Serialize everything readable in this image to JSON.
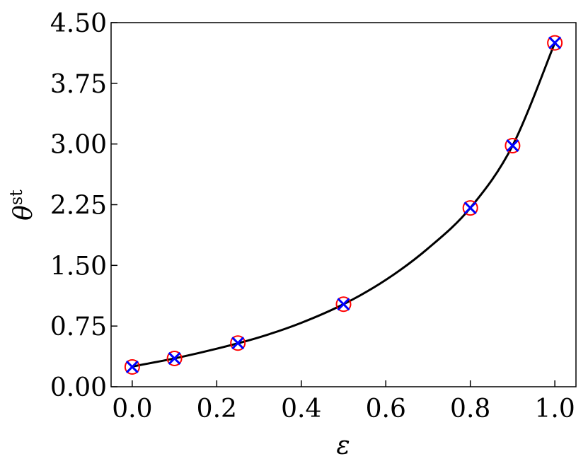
{
  "chart_data": {
    "type": "line_scatter",
    "xlabel": "ε",
    "ylabel": "θ",
    "ylabel_sup": "st",
    "xlim": [
      -0.05,
      1.05
    ],
    "xticks": [
      {
        "value": 0,
        "label": "0.0"
      },
      0.2,
      0.4,
      0.6,
      0.8,
      {
        "value": 1,
        "label": "1.0"
      }
    ],
    "ylim": [
      0,
      4.5
    ],
    "yticks": [
      {
        "value": 0,
        "label": "0.00"
      },
      0.75,
      {
        "value": 1.5,
        "label": "1.50"
      },
      2.25,
      {
        "value": 3,
        "label": "3.00"
      },
      3.75,
      {
        "value": 4.5,
        "label": "4.50"
      }
    ],
    "line": {
      "color": "#000000",
      "x": [
        0,
        0.1,
        0.2,
        0.3,
        0.4,
        0.5,
        0.6,
        0.7,
        0.8,
        0.9,
        1.0
      ],
      "values": [
        0.25,
        0.35,
        0.47,
        0.61,
        0.79,
        1.02,
        1.32,
        1.71,
        2.21,
        2.98,
        4.25
      ]
    },
    "series": [
      {
        "marker": "circle",
        "color": "#ff0000",
        "x": [
          0,
          0.1,
          0.25,
          0.5,
          0.8,
          0.9,
          1.0
        ],
        "values": [
          0.245,
          0.35,
          0.54,
          1.02,
          2.21,
          2.98,
          4.25
        ]
      },
      {
        "marker": "cross",
        "color": "#0000ff",
        "x": [
          0,
          0.1,
          0.25,
          0.5,
          0.8,
          0.9,
          1.0
        ],
        "values": [
          0.245,
          0.35,
          0.54,
          1.02,
          2.21,
          2.98,
          4.25
        ]
      }
    ]
  }
}
